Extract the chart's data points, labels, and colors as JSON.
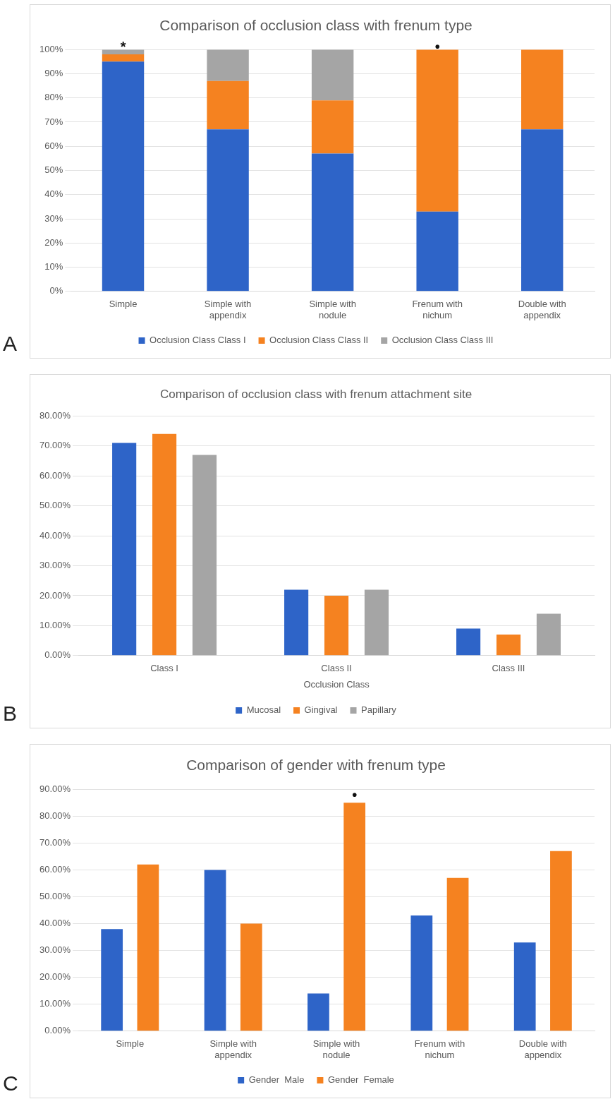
{
  "chart_data": [
    {
      "type": "bar",
      "title": "Comparison of occlusion class with frenum type",
      "stacked": true,
      "categories": [
        "Simple",
        "Simple with appendix",
        "Simple with nodule",
        "Frenum with nichum",
        "Double with appendix"
      ],
      "series": [
        {
          "name": "Occlusion Class Class I",
          "color": "#2e64c8",
          "values": [
            95,
            67,
            57,
            33,
            67
          ]
        },
        {
          "name": "Occlusion Class Class II",
          "color": "#f58220",
          "values": [
            3,
            20,
            22,
            67,
            33
          ]
        },
        {
          "name": "Occlusion Class Class III",
          "color": "#a5a5a5",
          "values": [
            2,
            13,
            21,
            0,
            0
          ]
        }
      ],
      "ylim": [
        0,
        100
      ],
      "yticks": [
        {
          "value": 0,
          "label": "0%"
        },
        {
          "value": 10,
          "label": "10%"
        },
        {
          "value": 20,
          "label": "20%"
        },
        {
          "value": 30,
          "label": "30%"
        },
        {
          "value": 40,
          "label": "40%"
        },
        {
          "value": 50,
          "label": "50%"
        },
        {
          "value": 60,
          "label": "60%"
        },
        {
          "value": 70,
          "label": "70%"
        },
        {
          "value": 80,
          "label": "80%"
        },
        {
          "value": 90,
          "label": "90%"
        },
        {
          "value": 100,
          "label": "100%"
        }
      ],
      "grid": "y",
      "legend": "bottom",
      "annotations": [
        "A",
        {
          "text": "*",
          "x": "Simple",
          "y": 100
        },
        {
          "text": "•",
          "x": "Frenum with nichum",
          "y": 100
        }
      ]
    },
    {
      "type": "bar",
      "title": "Comparison of occlusion class with frenum attachment site",
      "xlabel": "Occlusion Class",
      "categories": [
        "Class I",
        "Class II",
        "Class III"
      ],
      "series": [
        {
          "name": "Mucosal",
          "color": "#2e64c8",
          "values": [
            71,
            22,
            9
          ]
        },
        {
          "name": "Gingival",
          "color": "#f58220",
          "values": [
            74,
            20,
            7
          ]
        },
        {
          "name": "Papillary",
          "color": "#a5a5a5",
          "values": [
            67,
            22,
            14
          ]
        }
      ],
      "ylim": [
        0,
        80
      ],
      "yticks": [
        {
          "value": 0,
          "label": "0.00%"
        },
        {
          "value": 10,
          "label": "10.00%"
        },
        {
          "value": 20,
          "label": "20.00%"
        },
        {
          "value": 30,
          "label": "30.00%"
        },
        {
          "value": 40,
          "label": "40.00%"
        },
        {
          "value": 50,
          "label": "50.00%"
        },
        {
          "value": 60,
          "label": "60.00%"
        },
        {
          "value": 70,
          "label": "70.00%"
        },
        {
          "value": 80,
          "label": "80.00%"
        }
      ],
      "grid": "y",
      "legend": "bottom",
      "annotations": [
        "B"
      ]
    },
    {
      "type": "bar",
      "title": "Comparison of gender with frenum type",
      "categories": [
        "Simple",
        "Simple with appendix",
        "Simple with nodule",
        "Frenum with nichum",
        "Double with appendix"
      ],
      "series": [
        {
          "name": "Gender  Male",
          "color": "#2e64c8",
          "values": [
            38,
            60,
            14,
            43,
            33
          ]
        },
        {
          "name": "Gender  Female",
          "color": "#f58220",
          "values": [
            62,
            40,
            85,
            57,
            67
          ]
        }
      ],
      "ylim": [
        0,
        90
      ],
      "yticks": [
        {
          "value": 0,
          "label": "0.00%"
        },
        {
          "value": 10,
          "label": "10.00%"
        },
        {
          "value": 20,
          "label": "20.00%"
        },
        {
          "value": 30,
          "label": "30.00%"
        },
        {
          "value": 40,
          "label": "40.00%"
        },
        {
          "value": 50,
          "label": "50.00%"
        },
        {
          "value": 60,
          "label": "60.00%"
        },
        {
          "value": 70,
          "label": "70.00%"
        },
        {
          "value": 80,
          "label": "80.00%"
        },
        {
          "value": 90,
          "label": "90.00%"
        }
      ],
      "grid": "y",
      "legend": "bottom",
      "annotations": [
        "C",
        "•"
      ]
    }
  ]
}
